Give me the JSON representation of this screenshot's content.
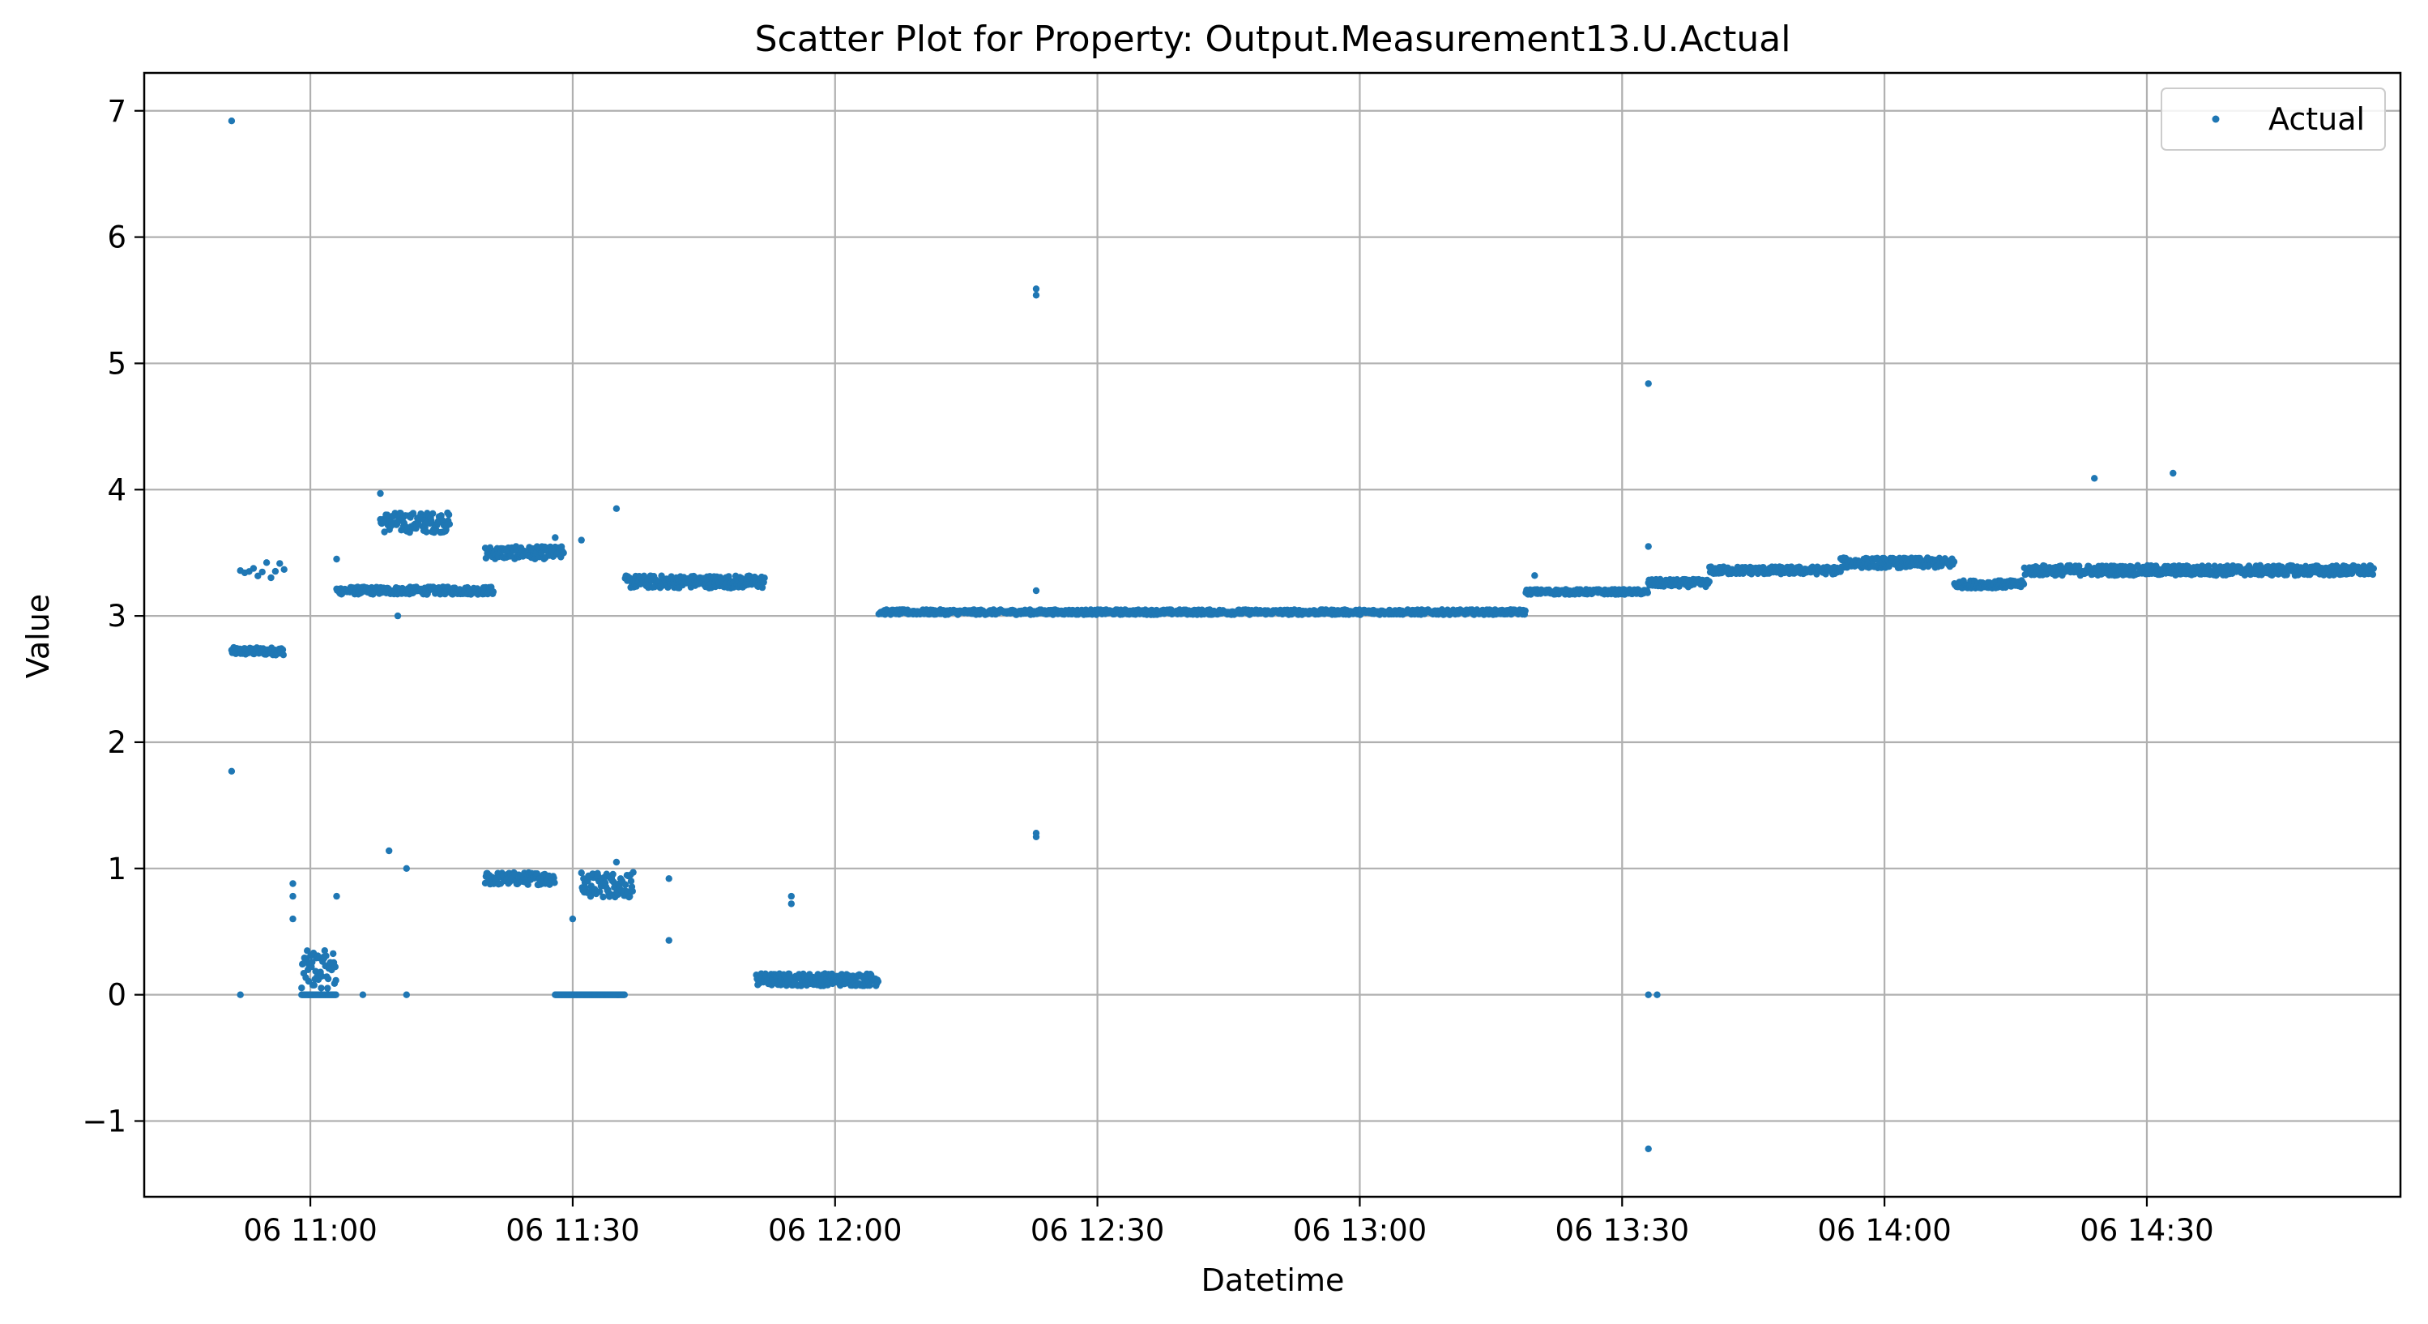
{
  "chart_data": {
    "type": "scatter",
    "title": "Scatter Plot for Property: Output.Measurement13.U.Actual",
    "xlabel": "Datetime",
    "ylabel": "Value",
    "x_ticks": [
      "06 11:00",
      "06 11:30",
      "06 12:00",
      "06 12:30",
      "06 13:00",
      "06 13:30",
      "06 14:00",
      "06 14:30"
    ],
    "y_ticks": [
      "−1",
      "0",
      "1",
      "2",
      "3",
      "4",
      "5",
      "6",
      "7"
    ],
    "xlim": [
      "10:41",
      "14:59"
    ],
    "ylim": [
      -1.6,
      7.3
    ],
    "grid": true,
    "legend": {
      "position": "top-right",
      "entries": [
        "Actual"
      ]
    },
    "colors": {
      "series": "#1f77b4",
      "grid": "#b0b0b0",
      "axes": "#000000"
    },
    "series": [
      {
        "name": "Actual",
        "segments": [
          {
            "start": "10:51",
            "end": "10:57",
            "level": 2.72,
            "jitter": 0.03
          },
          {
            "start": "10:52",
            "end": "10:57",
            "level": 3.35,
            "jitter": 0.08,
            "sparse": true
          },
          {
            "start": "10:59",
            "end": "11:03",
            "level": 0.2,
            "jitter": 0.15
          },
          {
            "start": "10:59",
            "end": "11:03",
            "level": 0.0,
            "jitter": 0.0
          },
          {
            "start": "11:03",
            "end": "11:21",
            "level": 3.2,
            "jitter": 0.03
          },
          {
            "start": "11:08",
            "end": "11:16",
            "level": 3.74,
            "jitter": 0.08
          },
          {
            "start": "11:20",
            "end": "11:29",
            "level": 3.5,
            "jitter": 0.05
          },
          {
            "start": "11:20",
            "end": "11:28",
            "level": 0.92,
            "jitter": 0.05
          },
          {
            "start": "11:28",
            "end": "11:36",
            "level": 0.0,
            "jitter": 0.0
          },
          {
            "start": "11:31",
            "end": "11:37",
            "level": 0.87,
            "jitter": 0.1
          },
          {
            "start": "11:36",
            "end": "11:52",
            "level": 3.27,
            "jitter": 0.05
          },
          {
            "start": "11:51",
            "end": "12:05",
            "level": 0.12,
            "jitter": 0.05
          },
          {
            "start": "12:05",
            "end": "13:19",
            "level": 3.03,
            "jitter": 0.02
          },
          {
            "start": "13:19",
            "end": "13:33",
            "level": 3.19,
            "jitter": 0.02
          },
          {
            "start": "13:33",
            "end": "13:40",
            "level": 3.26,
            "jitter": 0.03
          },
          {
            "start": "13:40",
            "end": "13:55",
            "level": 3.36,
            "jitter": 0.03
          },
          {
            "start": "13:55",
            "end": "14:08",
            "level": 3.42,
            "jitter": 0.04
          },
          {
            "start": "14:08",
            "end": "14:16",
            "level": 3.25,
            "jitter": 0.03
          },
          {
            "start": "14:16",
            "end": "14:56",
            "level": 3.36,
            "jitter": 0.04
          }
        ],
        "points": [
          [
            "10:51",
            6.92
          ],
          [
            "10:51",
            1.77
          ],
          [
            "10:52",
            0.0
          ],
          [
            "10:58",
            0.88
          ],
          [
            "10:58",
            0.78
          ],
          [
            "10:58",
            0.6
          ],
          [
            "11:03",
            0.78
          ],
          [
            "11:03",
            3.45
          ],
          [
            "11:06",
            0.0
          ],
          [
            "11:08",
            3.97
          ],
          [
            "11:09",
            1.14
          ],
          [
            "11:11",
            1.0
          ],
          [
            "11:11",
            0.0
          ],
          [
            "11:10",
            3.0
          ],
          [
            "11:28",
            3.62
          ],
          [
            "11:30",
            0.6
          ],
          [
            "11:31",
            3.6
          ],
          [
            "11:35",
            3.85
          ],
          [
            "11:35",
            1.05
          ],
          [
            "11:41",
            0.43
          ],
          [
            "11:41",
            0.92
          ],
          [
            "11:42",
            3.3
          ],
          [
            "11:55",
            0.78
          ],
          [
            "11:55",
            0.72
          ],
          [
            "12:23",
            5.59
          ],
          [
            "12:23",
            5.54
          ],
          [
            "12:23",
            3.2
          ],
          [
            "12:23",
            1.28
          ],
          [
            "12:23",
            1.25
          ],
          [
            "13:20",
            3.32
          ],
          [
            "13:33",
            4.84
          ],
          [
            "13:33",
            3.55
          ],
          [
            "13:33",
            0.0
          ],
          [
            "13:34",
            0.0
          ],
          [
            "13:33",
            -1.22
          ],
          [
            "14:24",
            4.09
          ],
          [
            "14:33",
            4.13
          ]
        ]
      }
    ]
  }
}
